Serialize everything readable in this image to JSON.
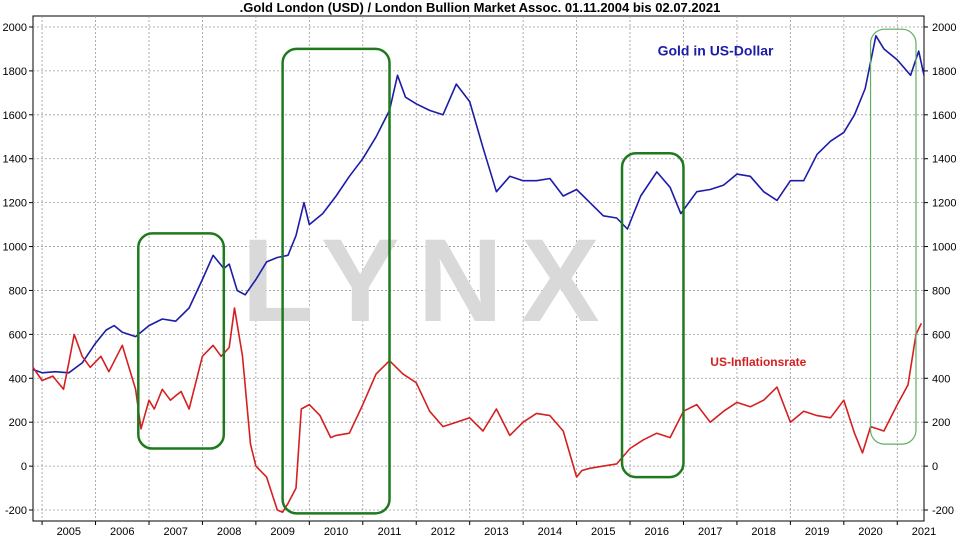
{
  "chart_data": {
    "type": "line",
    "title": ".Gold London (USD) / London Bullion Market Assoc. 01.11.2004 bis 02.07.2021",
    "x_ticks": [
      "2005",
      "2006",
      "2007",
      "2008",
      "2009",
      "2010",
      "2011",
      "2012",
      "2013",
      "2014",
      "2015",
      "2016",
      "2017",
      "2018",
      "2019",
      "2020",
      "2021"
    ],
    "y_ticks": [
      -200,
      0,
      200,
      400,
      600,
      800,
      1000,
      1200,
      1400,
      1600,
      1800,
      2000
    ],
    "xlim": [
      2004.83,
      2021.5
    ],
    "ylim": [
      -250,
      2050
    ],
    "grid": true,
    "watermark": "LYNX",
    "colors": {
      "gold": "#1c1ca8",
      "inflation": "#d42020",
      "highlight": "#1f7a1f",
      "highlight_thin": "#5fae5f",
      "watermark": "#d9d9d9"
    },
    "series": [
      {
        "name": "Gold in US-Dollar",
        "x": [
          2004.83,
          2005.0,
          2005.25,
          2005.5,
          2005.75,
          2006.0,
          2006.2,
          2006.35,
          2006.5,
          2006.75,
          2007.0,
          2007.25,
          2007.5,
          2007.75,
          2008.0,
          2008.2,
          2008.4,
          2008.5,
          2008.65,
          2008.8,
          2009.0,
          2009.2,
          2009.4,
          2009.6,
          2009.75,
          2009.9,
          2010.0,
          2010.25,
          2010.5,
          2010.75,
          2011.0,
          2011.25,
          2011.5,
          2011.65,
          2011.8,
          2012.0,
          2012.25,
          2012.5,
          2012.75,
          2013.0,
          2013.25,
          2013.5,
          2013.75,
          2014.0,
          2014.25,
          2014.5,
          2014.75,
          2015.0,
          2015.25,
          2015.5,
          2015.75,
          2015.95,
          2016.2,
          2016.5,
          2016.75,
          2016.95,
          2017.25,
          2017.5,
          2017.75,
          2018.0,
          2018.25,
          2018.5,
          2018.75,
          2019.0,
          2019.25,
          2019.5,
          2019.75,
          2020.0,
          2020.2,
          2020.4,
          2020.6,
          2020.75,
          2021.0,
          2021.25,
          2021.4,
          2021.5
        ],
        "values": [
          440,
          425,
          430,
          425,
          470,
          560,
          620,
          640,
          610,
          590,
          640,
          670,
          660,
          720,
          850,
          960,
          900,
          920,
          800,
          780,
          850,
          930,
          950,
          960,
          1050,
          1200,
          1100,
          1150,
          1230,
          1320,
          1400,
          1500,
          1620,
          1780,
          1680,
          1650,
          1620,
          1600,
          1740,
          1660,
          1450,
          1250,
          1320,
          1300,
          1300,
          1310,
          1230,
          1260,
          1200,
          1140,
          1130,
          1080,
          1230,
          1340,
          1270,
          1150,
          1250,
          1260,
          1280,
          1330,
          1320,
          1250,
          1210,
          1300,
          1300,
          1420,
          1480,
          1520,
          1600,
          1720,
          1960,
          1900,
          1850,
          1780,
          1890,
          1780
        ]
      },
      {
        "name": "US-Inflationsrate",
        "x": [
          2004.83,
          2005.0,
          2005.2,
          2005.4,
          2005.5,
          2005.6,
          2005.75,
          2005.9,
          2006.1,
          2006.25,
          2006.5,
          2006.6,
          2006.75,
          2006.85,
          2007.0,
          2007.1,
          2007.25,
          2007.4,
          2007.5,
          2007.6,
          2007.75,
          2008.0,
          2008.2,
          2008.35,
          2008.5,
          2008.6,
          2008.75,
          2008.9,
          2009.0,
          2009.2,
          2009.4,
          2009.5,
          2009.6,
          2009.75,
          2009.85,
          2010.0,
          2010.2,
          2010.4,
          2010.5,
          2010.75,
          2011.0,
          2011.25,
          2011.5,
          2011.75,
          2012.0,
          2012.25,
          2012.5,
          2012.75,
          2013.0,
          2013.25,
          2013.5,
          2013.75,
          2014.0,
          2014.25,
          2014.5,
          2014.75,
          2015.0,
          2015.1,
          2015.25,
          2015.5,
          2015.75,
          2016.0,
          2016.25,
          2016.5,
          2016.75,
          2017.0,
          2017.25,
          2017.5,
          2017.75,
          2018.0,
          2018.25,
          2018.5,
          2018.75,
          2019.0,
          2019.25,
          2019.5,
          2019.75,
          2020.0,
          2020.2,
          2020.35,
          2020.5,
          2020.75,
          2021.0,
          2021.2,
          2021.35,
          2021.45
        ],
        "values": [
          450,
          390,
          410,
          350,
          470,
          600,
          500,
          450,
          500,
          430,
          550,
          470,
          350,
          170,
          300,
          260,
          350,
          300,
          320,
          340,
          260,
          500,
          550,
          500,
          540,
          720,
          500,
          100,
          0,
          -50,
          -200,
          -210,
          -170,
          -100,
          260,
          280,
          230,
          130,
          140,
          150,
          280,
          420,
          480,
          420,
          380,
          250,
          180,
          200,
          220,
          160,
          260,
          140,
          200,
          240,
          230,
          160,
          -50,
          -20,
          -10,
          0,
          10,
          80,
          120,
          150,
          130,
          250,
          280,
          200,
          250,
          290,
          270,
          300,
          360,
          200,
          250,
          230,
          220,
          300,
          150,
          60,
          180,
          160,
          280,
          370,
          600,
          650
        ]
      }
    ],
    "annotations": [
      "Gold in US-Dollar",
      "US-Inflationsrate"
    ]
  }
}
